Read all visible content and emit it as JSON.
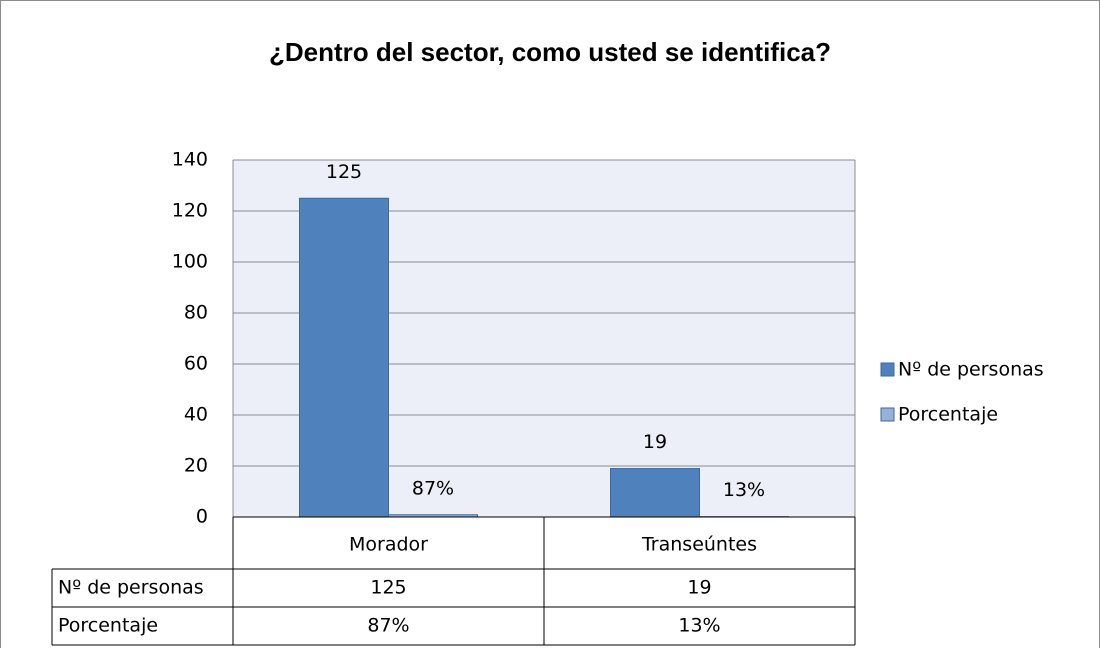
{
  "chart_data": {
    "type": "bar",
    "title": "¿Dentro del sector, como usted se identifica?",
    "categories": [
      "Morador",
      "Transeúntes"
    ],
    "series": [
      {
        "name": "Nº de personas",
        "color": "#4f81bd",
        "values": [
          125,
          19
        ]
      },
      {
        "name": "Porcentaje",
        "color": "#95b3d7",
        "values": [
          0.87,
          0.13
        ],
        "value_labels": [
          "87%",
          "13%"
        ]
      }
    ],
    "ylim": [
      0,
      140
    ],
    "yticks": [
      0,
      20,
      40,
      60,
      80,
      100,
      120,
      140
    ],
    "grid": true,
    "legend": "right",
    "data_table": true
  }
}
